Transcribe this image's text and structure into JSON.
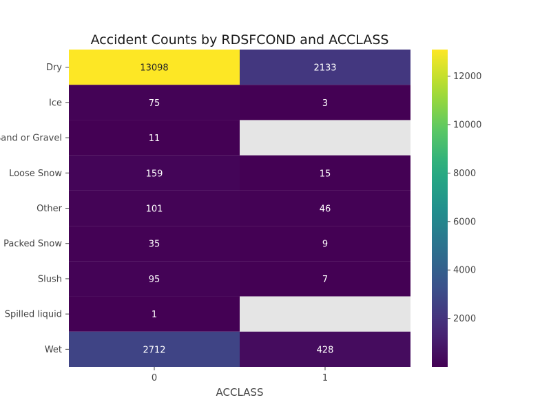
{
  "chart_data": {
    "type": "heatmap",
    "title": "Accident Counts by RDSFCOND and ACCLASS",
    "xlabel": "ACCLASS",
    "ylabel": "",
    "x_categories": [
      "0",
      "1"
    ],
    "y_categories": [
      "Dry",
      "Ice",
      "Loose Sand or Gravel",
      "Loose Snow",
      "Other",
      "Packed Snow",
      "Slush",
      "Spilled liquid",
      "Wet"
    ],
    "values": [
      [
        13098,
        2133
      ],
      [
        75,
        3
      ],
      [
        11,
        null
      ],
      [
        159,
        15
      ],
      [
        101,
        46
      ],
      [
        35,
        9
      ],
      [
        95,
        7
      ],
      [
        1,
        null
      ],
      [
        2712,
        428
      ]
    ],
    "colormap": "viridis",
    "vmin": 1,
    "vmax": 13098,
    "missing_color": "#e5e5e5",
    "colorbar_ticks": [
      2000,
      4000,
      6000,
      8000,
      10000,
      12000
    ],
    "colorbar_tick_labels": [
      "2000",
      "4000",
      "6000",
      "8000",
      "10000",
      "12000"
    ]
  }
}
